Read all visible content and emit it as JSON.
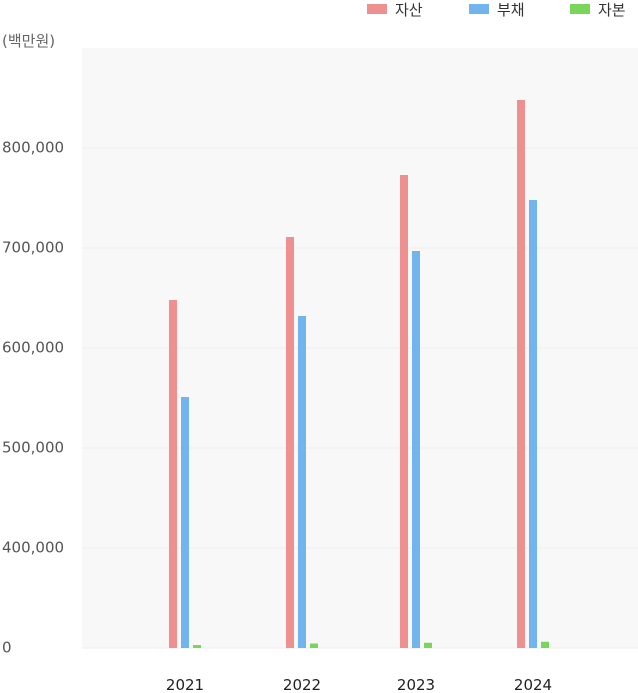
{
  "chart_data": {
    "type": "bar",
    "unit_label": "(백만원)",
    "categories": [
      "2021",
      "2022",
      "2023",
      "2024"
    ],
    "series": [
      {
        "name": "자산",
        "color": "#ef9090",
        "values": [
          648000,
          711000,
          773000,
          848000
        ]
      },
      {
        "name": "부채",
        "color": "#72b4ee",
        "values": [
          551000,
          632000,
          697000,
          748000
        ]
      },
      {
        "name": "자본",
        "color": "#7ad65a",
        "values": [
          12000,
          18000,
          21000,
          25000
        ]
      }
    ],
    "y_ticks": [
      {
        "value": 0,
        "label": "0"
      },
      {
        "value": 400000,
        "label": "400,000"
      },
      {
        "value": 500000,
        "label": "500,000"
      },
      {
        "value": 600000,
        "label": "600,000"
      },
      {
        "value": 700000,
        "label": "700,000"
      },
      {
        "value": 800000,
        "label": "800,000"
      }
    ],
    "ylim": [
      0,
      900000
    ],
    "y_axis_break": [
      0,
      400000
    ],
    "grid": true,
    "legend_position": "top-right"
  }
}
